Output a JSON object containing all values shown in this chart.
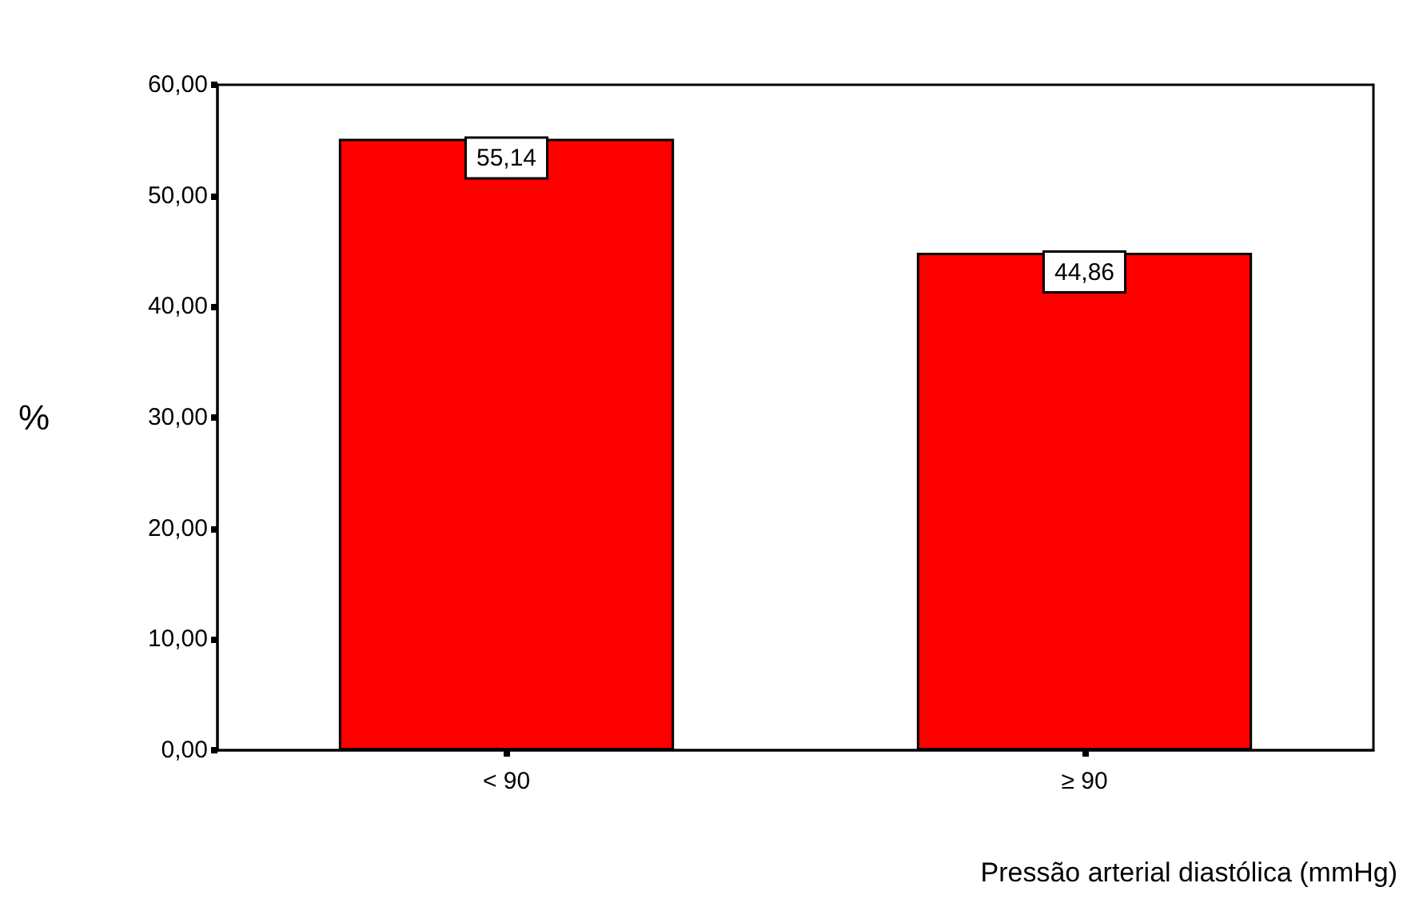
{
  "chart_data": {
    "type": "bar",
    "xlabel": "Pressão arterial diastólica (mmHg)",
    "ylabel": "%",
    "categories": [
      "< 90",
      "≥ 90"
    ],
    "values": [
      55.14,
      44.86
    ],
    "color": "#ff0000",
    "value_labels": [
      "55,14",
      "44,86"
    ],
    "ylim": [
      0,
      60
    ],
    "yticks": [
      {
        "value": 0,
        "label": "0,00"
      },
      {
        "value": 10,
        "label": "10,00"
      },
      {
        "value": 20,
        "label": "20,00"
      },
      {
        "value": 30,
        "label": "30,00"
      },
      {
        "value": 40,
        "label": "40,00"
      },
      {
        "value": 50,
        "label": "50,00"
      },
      {
        "value": 60,
        "label": "60,00"
      }
    ],
    "grid": false
  }
}
